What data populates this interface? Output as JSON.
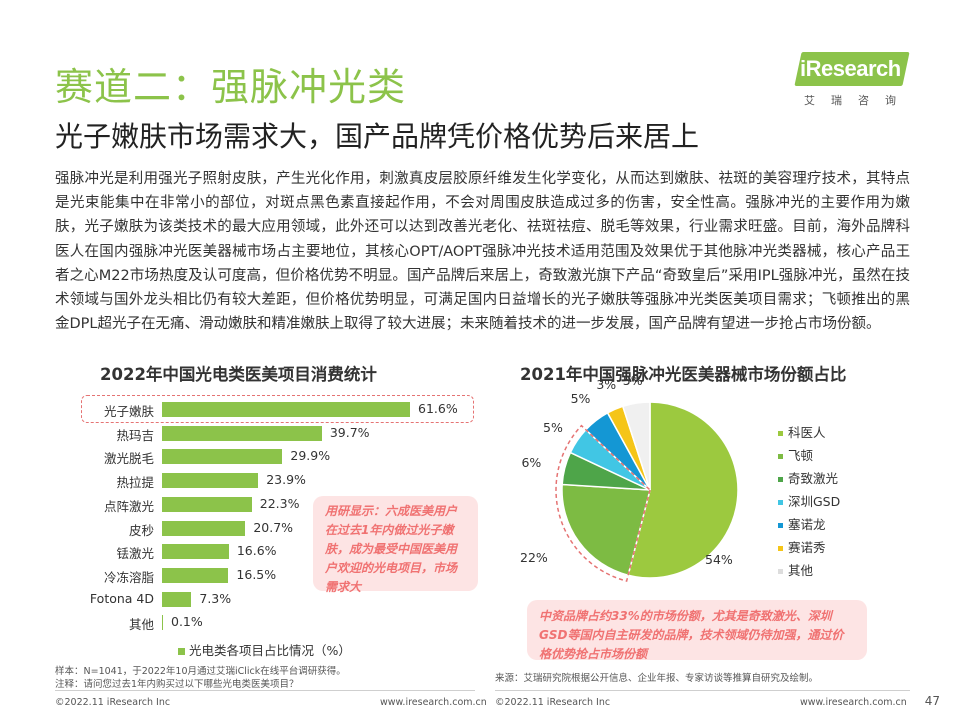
{
  "header": {
    "title": "赛道二：强脉冲光类",
    "subtitle": "光子嫩肤市场需求大，国产品牌凭价格优势后来居上"
  },
  "logo": {
    "brand": "iResearch",
    "sub": "艾瑞咨询"
  },
  "body_text": "强脉冲光是利用强光子照射皮肤，产生光化作用，刺激真皮层胶原纤维发生化学变化，从而达到嫩肤、祛斑的美容理疗技术，其特点是光束能集中在非常小的部位，对斑点黑色素直接起作用，不会对周围皮肤造成过多的伤害，安全性高。强脉冲光的主要作用为嫩肤，光子嫩肤为该类技术的最大应用领域，此外还可以达到改善光老化、祛斑祛痘、脱毛等效果，行业需求旺盛。目前，海外品牌科医人在国内强脉冲光医美器械市场占主要地位，其核心OPT/AOPT强脉冲光技术适用范围及效果优于其他脉冲光类器械，核心产品王者之心M22市场热度及认可度高，但价格优势不明显。国产品牌后来居上，奇致激光旗下产品“奇致皇后”采用IPL强脉冲光，虽然在技术领域与国外龙头相比仍有较大差距，但价格优势明显，可满足国内日益增长的光子嫩肤等强脉冲光类医美项目需求；飞顿推出的黑金DPL超光子在无痛、滑动嫩肤和精准嫩肤上取得了较大进展；未来随着技术的进一步发展，国产品牌有望进一步抢占市场份额。",
  "callouts": {
    "left": "用研显示：六成医美用户在过去1年内做过光子嫩肤，成为最受中国医美用户欢迎的光电项目，市场需求大",
    "right": "中资品牌占约33%的市场份额，尤其是奇致激光、深圳GSD等国内自主研发的品牌，技术领域仍待加强，通过价格优势抢占市场份额"
  },
  "notes": {
    "sample": "样本：N=1041，于2022年10月通过艾瑞iClick在线平台调研获得。",
    "remark": "注释：请问您过去1年内购买过以下哪些光电类医美项目？",
    "source": "来源：艾瑞研究院根据公开信息、企业年报、专家访谈等推算自研究及绘制。"
  },
  "footer": {
    "left_copyright": "©2022.11 iResearch Inc",
    "left_url": "www.iresearch.com.cn",
    "right_copyright": "©2022.11 iResearch Inc",
    "right_url": "www.iresearch.com.cn",
    "page": "47"
  },
  "colors": {
    "accent": "#8cc34a",
    "callout_bg": "#fde4e4",
    "callout_text": "#f07272"
  },
  "chart_data": [
    {
      "type": "bar",
      "orientation": "horizontal",
      "title": "2022年中国光电类医美项目消费统计",
      "categories": [
        "光子嫩肤",
        "热玛吉",
        "激光脱毛",
        "热拉提",
        "点阵激光",
        "皮秒",
        "铥激光",
        "冷冻溶脂",
        "Fotona 4D",
        "其他"
      ],
      "values": [
        61.6,
        39.7,
        29.9,
        23.9,
        22.3,
        20.7,
        16.6,
        16.5,
        7.3,
        0.1
      ],
      "value_labels": [
        "61.6%",
        "39.7%",
        "29.9%",
        "23.9%",
        "22.3%",
        "20.7%",
        "16.6%",
        "16.5%",
        "7.3%",
        "0.1%"
      ],
      "legend": "光电类各项目占比情况（%）",
      "highlight": "光子嫩肤",
      "color": "#8cc34a"
    },
    {
      "type": "pie",
      "title": "2021年中国强脉冲光医美器械市场份额占比",
      "labels": [
        "科医人",
        "飞顿",
        "奇致激光",
        "深圳GSD",
        "塞诺龙",
        "赛诺秀",
        "其他"
      ],
      "values": [
        54,
        22,
        6,
        5,
        5,
        3,
        5
      ],
      "value_labels": [
        "54%",
        "22%",
        "6%",
        "5%",
        "5%",
        "3%",
        "5%"
      ],
      "colors": [
        "#9cc93f",
        "#7dbb43",
        "#4ea549",
        "#41c6e4",
        "#1497d4",
        "#f5c518",
        "#f0f0f0"
      ],
      "highlight": [
        "飞顿",
        "奇致激光",
        "深圳GSD"
      ]
    }
  ]
}
